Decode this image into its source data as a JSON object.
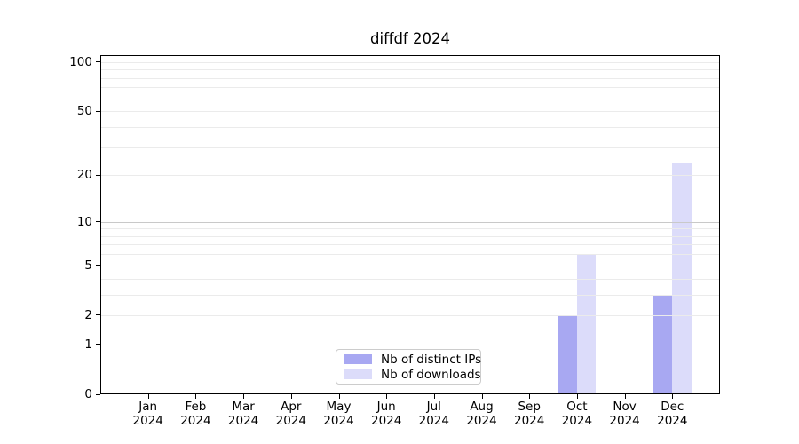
{
  "chart_data": {
    "type": "bar",
    "title": "diffdf 2024",
    "categories": [
      "Jan",
      "Feb",
      "Mar",
      "Apr",
      "May",
      "Jun",
      "Jul",
      "Aug",
      "Sep",
      "Oct",
      "Nov",
      "Dec"
    ],
    "category_year": "2024",
    "series": [
      {
        "name": "Nb of distinct IPs",
        "color": "#a8a8f2",
        "values": [
          0,
          0,
          0,
          0,
          0,
          0,
          0,
          0,
          0,
          2,
          0,
          3
        ]
      },
      {
        "name": "Nb of downloads",
        "color": "#dcdcfa",
        "values": [
          0,
          0,
          0,
          0,
          0,
          0,
          0,
          0,
          0,
          6,
          0,
          24
        ]
      }
    ],
    "yscale": "log1p",
    "ylim": [
      0,
      110
    ],
    "y_ticks_labeled": [
      0,
      1,
      2,
      5,
      10,
      20,
      50,
      100
    ],
    "y_gridlines_minor": [
      2,
      3,
      4,
      5,
      6,
      7,
      8,
      9,
      20,
      30,
      40,
      50,
      60,
      70,
      80,
      90,
      100
    ],
    "y_gridlines_major": [
      1,
      10
    ],
    "grid": true,
    "legend_position": "lower center",
    "background_color": "#ffffff",
    "axis_color": "#000000"
  }
}
